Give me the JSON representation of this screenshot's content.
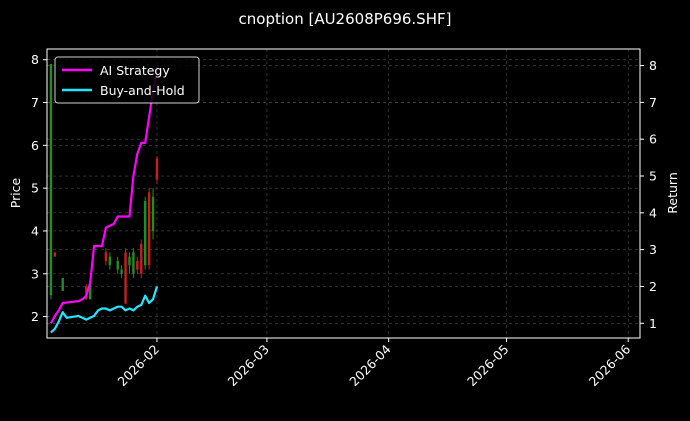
{
  "chart_data": {
    "type": "line",
    "title": "cnoption [AU2608P696.SHF]",
    "xlabel": "",
    "ylabel_left": "Price",
    "ylabel_right": "Return",
    "x_ticks": [
      "2026-02",
      "2026-03",
      "2026-04",
      "2026-05",
      "2026-06"
    ],
    "y_left_ticks": [
      "2",
      "3",
      "4",
      "5",
      "6",
      "7",
      "8"
    ],
    "y_right_ticks": [
      "1",
      "2",
      "3",
      "4",
      "5",
      "6",
      "7",
      "8"
    ],
    "x_range": [
      "2026-01-04",
      "2026-06-04"
    ],
    "y_left_range": [
      1.5,
      8.25
    ],
    "y_right_range": [
      0.6,
      8.45
    ],
    "grid": true,
    "legend_position": "top-left",
    "legend": [
      "AI Strategy",
      "Buy-and-Hold"
    ],
    "colors": {
      "background": "#000000",
      "ai_strategy": "#ff00ff",
      "buy_and_hold": "#22e6ff",
      "candle_up": "#1f8f1f",
      "candle_down": "#c81e1e",
      "grid": "#4a4a4a",
      "text": "#ffffff"
    },
    "candles": [
      {
        "date": "2026-01-05",
        "open": 2.5,
        "close": 7.9,
        "low": 2.4,
        "high": 7.9
      },
      {
        "date": "2026-01-06",
        "open": 3.5,
        "close": 3.4,
        "low": 3.4,
        "high": 3.5
      },
      {
        "date": "2026-01-08",
        "open": 2.6,
        "close": 2.9,
        "low": 2.6,
        "high": 2.9
      },
      {
        "date": "2026-01-14",
        "open": 2.7,
        "close": 2.4,
        "low": 2.4,
        "high": 2.75
      },
      {
        "date": "2026-01-15",
        "open": 2.4,
        "close": 2.75,
        "low": 2.4,
        "high": 2.75
      },
      {
        "date": "2026-01-19",
        "open": 3.5,
        "close": 3.3,
        "low": 3.2,
        "high": 3.6
      },
      {
        "date": "2026-01-20",
        "open": 3.2,
        "close": 3.4,
        "low": 3.1,
        "high": 3.5
      },
      {
        "date": "2026-01-22",
        "open": 3.1,
        "close": 3.3,
        "low": 3.0,
        "high": 3.4
      },
      {
        "date": "2026-01-23",
        "open": 3.0,
        "close": 3.1,
        "low": 2.9,
        "high": 3.2
      },
      {
        "date": "2026-01-24",
        "open": 3.5,
        "close": 2.3,
        "low": 2.3,
        "high": 3.6
      },
      {
        "date": "2026-01-25",
        "open": 3.2,
        "close": 3.4,
        "low": 3.0,
        "high": 3.5
      },
      {
        "date": "2026-01-26",
        "open": 3.0,
        "close": 3.5,
        "low": 2.9,
        "high": 3.6
      },
      {
        "date": "2026-01-27",
        "open": 3.3,
        "close": 3.1,
        "low": 3.0,
        "high": 3.4
      },
      {
        "date": "2026-01-28",
        "open": 3.7,
        "close": 3.0,
        "low": 2.9,
        "high": 3.8
      },
      {
        "date": "2026-01-29",
        "open": 3.2,
        "close": 4.7,
        "low": 3.1,
        "high": 4.8
      },
      {
        "date": "2026-01-30",
        "open": 4.9,
        "close": 3.2,
        "low": 3.1,
        "high": 5.0
      },
      {
        "date": "2026-01-31",
        "open": 4.0,
        "close": 4.8,
        "low": 3.8,
        "high": 5.0
      },
      {
        "date": "2026-02-01",
        "open": 5.7,
        "close": 5.2,
        "low": 5.1,
        "high": 5.75
      }
    ],
    "series": [
      {
        "name": "AI Strategy",
        "axis": "right",
        "x": [
          "2026-01-05",
          "2026-01-06",
          "2026-01-07",
          "2026-01-08",
          "2026-01-12",
          "2026-01-13",
          "2026-01-14",
          "2026-01-15",
          "2026-01-16",
          "2026-01-17",
          "2026-01-18",
          "2026-01-19",
          "2026-01-20",
          "2026-01-21",
          "2026-01-22",
          "2026-01-23",
          "2026-01-24",
          "2026-01-25",
          "2026-01-26",
          "2026-01-27",
          "2026-01-28",
          "2026-01-29",
          "2026-01-30",
          "2026-01-31",
          "2026-02-01"
        ],
        "values": [
          1.0,
          1.2,
          1.35,
          1.55,
          1.6,
          1.65,
          1.75,
          2.1,
          3.1,
          3.1,
          3.1,
          3.6,
          3.65,
          3.7,
          3.9,
          3.9,
          3.9,
          3.9,
          5.0,
          5.6,
          5.9,
          5.9,
          6.6,
          7.3,
          7.9
        ]
      },
      {
        "name": "Buy-and-Hold",
        "axis": "right",
        "x": [
          "2026-01-05",
          "2026-01-06",
          "2026-01-07",
          "2026-01-08",
          "2026-01-09",
          "2026-01-12",
          "2026-01-13",
          "2026-01-14",
          "2026-01-15",
          "2026-01-16",
          "2026-01-17",
          "2026-01-18",
          "2026-01-19",
          "2026-01-20",
          "2026-01-21",
          "2026-01-22",
          "2026-01-23",
          "2026-01-24",
          "2026-01-25",
          "2026-01-26",
          "2026-01-27",
          "2026-01-28",
          "2026-01-29",
          "2026-01-30",
          "2026-01-31",
          "2026-02-01"
        ],
        "values": [
          0.75,
          0.85,
          1.05,
          1.3,
          1.15,
          1.2,
          1.15,
          1.1,
          1.15,
          1.2,
          1.35,
          1.4,
          1.4,
          1.35,
          1.4,
          1.45,
          1.45,
          1.35,
          1.4,
          1.35,
          1.45,
          1.5,
          1.75,
          1.55,
          1.65,
          2.0
        ]
      }
    ]
  }
}
